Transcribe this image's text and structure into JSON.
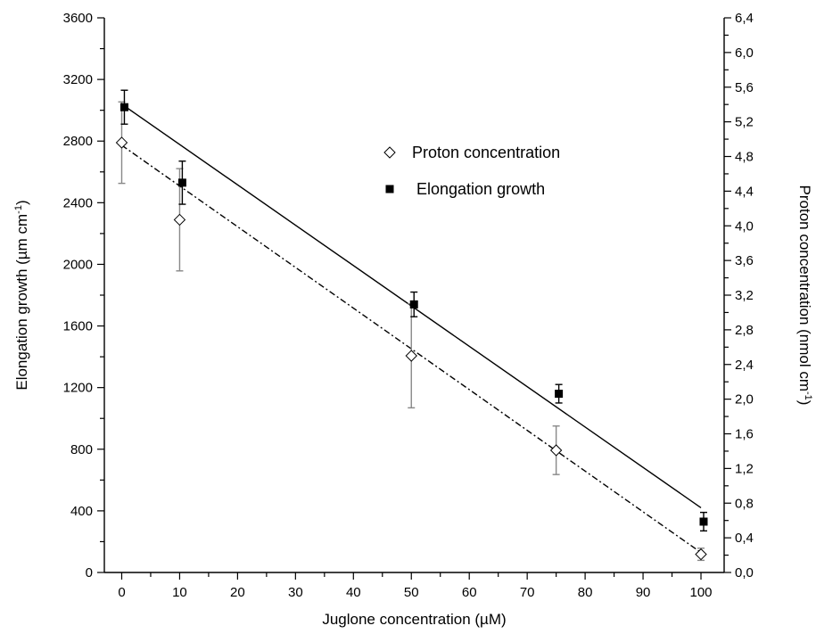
{
  "chart_data": {
    "type": "scatter",
    "xlabel": "Juglone concentration (µM)",
    "ylabel_left": {
      "text": "Elongation growth (µm cm",
      "sup": "-1",
      "tail": ")"
    },
    "ylabel_right": {
      "text": "Proton concentration (nmol cm",
      "sup": "-1",
      "tail": ")"
    },
    "xlim": [
      -3,
      104
    ],
    "ylim_left": [
      0,
      3600
    ],
    "ylim_right": [
      0,
      6.4
    ],
    "x_ticks": [
      "0",
      "10",
      "20",
      "30",
      "40",
      "50",
      "60",
      "70",
      "80",
      "90",
      "100"
    ],
    "y_left_ticks": [
      "0",
      "400",
      "800",
      "1200",
      "1600",
      "2000",
      "2400",
      "2800",
      "3200",
      "3600"
    ],
    "y_right_ticks": [
      "0,0",
      "0,4",
      "0,8",
      "1,2",
      "1,6",
      "2,0",
      "2,4",
      "2,8",
      "3,2",
      "3,6",
      "4,0",
      "4,4",
      "4,8",
      "5,2",
      "5,6",
      "6,0",
      "6,4"
    ],
    "legend_position": "upper-center",
    "series": [
      {
        "name": "Proton concentration",
        "axis": "right",
        "marker": "open-diamond",
        "color": "#000000",
        "errorbar_color": "#888888",
        "x": [
          0,
          10,
          50,
          75,
          100
        ],
        "y": [
          4.96,
          4.07,
          2.5,
          1.41,
          0.21
        ],
        "err": [
          0.47,
          0.59,
          0.6,
          0.28,
          0.07
        ],
        "fit": {
          "style": "dash-dot",
          "x": [
            0,
            100
          ],
          "y": [
            4.93,
            0.23
          ]
        }
      },
      {
        "name": "Elongation growth",
        "axis": "left",
        "marker": "filled-square",
        "color": "#000000",
        "errorbar_color": "#000000",
        "x": [
          0,
          10,
          50,
          75,
          100
        ],
        "y": [
          3020,
          2530,
          1740,
          1160,
          330
        ],
        "err": [
          110,
          140,
          80,
          60,
          60
        ],
        "fit": {
          "style": "solid",
          "x": [
            0,
            100
          ],
          "y": [
            3040,
            420
          ]
        }
      }
    ]
  }
}
